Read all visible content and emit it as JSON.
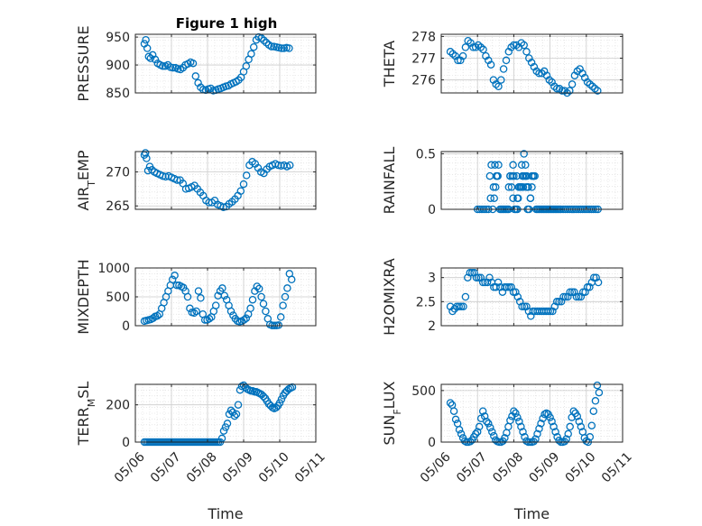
{
  "figure": {
    "title": "Figure 1 high"
  },
  "style": {
    "marker_color": "#0072BD",
    "axis_color": "#262626",
    "grid_color": "#d9d9d9"
  },
  "xaxis": {
    "label": "Time",
    "ticklabels": [
      "05/06",
      "05/07",
      "05/08",
      "05/09",
      "05/10",
      "05/11"
    ],
    "range": [
      0,
      5
    ]
  },
  "chart_data": [
    {
      "type": "scatter",
      "title": "Figure 1 high",
      "xlabel": "",
      "ylabel": "PRESSURE",
      "ylim": [
        850,
        955
      ],
      "yticks": [
        850,
        900,
        950
      ],
      "yticklabels": [
        "850",
        "900",
        "950"
      ],
      "x": [
        0.25,
        0.29,
        0.33,
        0.37,
        0.42,
        0.48,
        0.55,
        0.62,
        0.69,
        0.76,
        0.83,
        0.9,
        0.97,
        1.04,
        1.11,
        1.18,
        1.25,
        1.32,
        1.39,
        1.46,
        1.53,
        1.6,
        1.67,
        1.74,
        1.81,
        1.88,
        1.95,
        2.02,
        2.09,
        2.16,
        2.23,
        2.3,
        2.37,
        2.44,
        2.51,
        2.58,
        2.65,
        2.72,
        2.79,
        2.86,
        2.93,
        3.0,
        3.07,
        3.14,
        3.21,
        3.28,
        3.35,
        3.42,
        3.49,
        3.56,
        3.63,
        3.7,
        3.77,
        3.84,
        3.91,
        3.98,
        4.05,
        4.12,
        4.19,
        4.26
      ],
      "y": [
        938,
        945,
        930,
        915,
        912,
        918,
        910,
        903,
        900,
        898,
        898,
        900,
        896,
        895,
        895,
        893,
        892,
        895,
        900,
        902,
        905,
        903,
        880,
        868,
        860,
        856,
        855,
        857,
        858,
        854,
        855,
        857,
        858,
        860,
        862,
        863,
        866,
        868,
        870,
        873,
        878,
        888,
        898,
        910,
        920,
        932,
        945,
        950,
        948,
        944,
        940,
        936,
        933,
        933,
        932,
        931,
        930,
        930,
        931,
        930
      ]
    },
    {
      "type": "scatter",
      "xlabel": "",
      "ylabel": "THETA",
      "ylim": [
        275.4,
        278.1
      ],
      "yticks": [
        276,
        277,
        278
      ],
      "yticklabels": [
        "276",
        "277",
        "278"
      ],
      "x": [
        0.25,
        0.32,
        0.39,
        0.46,
        0.53,
        0.6,
        0.67,
        0.74,
        0.81,
        0.88,
        0.95,
        1.02,
        1.09,
        1.16,
        1.23,
        1.3,
        1.37,
        1.44,
        1.51,
        1.58,
        1.65,
        1.72,
        1.79,
        1.86,
        1.93,
        2.0,
        2.07,
        2.14,
        2.21,
        2.28,
        2.35,
        2.42,
        2.49,
        2.56,
        2.63,
        2.7,
        2.77,
        2.84,
        2.91,
        2.98,
        3.05,
        3.12,
        3.19,
        3.26,
        3.33,
        3.4,
        3.47,
        3.54,
        3.61,
        3.68,
        3.75,
        3.82,
        3.89,
        3.96,
        4.03,
        4.1,
        4.17,
        4.24,
        4.31
      ],
      "y": [
        277.3,
        277.2,
        277.1,
        276.9,
        276.9,
        277.1,
        277.5,
        277.8,
        277.7,
        277.5,
        277.5,
        277.6,
        277.5,
        277.4,
        277.1,
        276.9,
        276.7,
        276.0,
        275.8,
        275.7,
        276.0,
        276.5,
        276.9,
        277.3,
        277.5,
        277.6,
        277.6,
        277.5,
        277.7,
        277.6,
        277.3,
        277.0,
        276.8,
        276.6,
        276.4,
        276.3,
        276.3,
        276.4,
        276.2,
        276.0,
        275.9,
        275.7,
        275.6,
        275.6,
        275.5,
        275.5,
        275.4,
        275.5,
        275.8,
        276.2,
        276.4,
        276.5,
        276.3,
        276.1,
        275.9,
        275.8,
        275.7,
        275.6,
        275.5
      ]
    },
    {
      "type": "scatter",
      "xlabel": "",
      "ylabel": "AIR_TEMP",
      "ylim": [
        264.5,
        273
      ],
      "yticks": [
        265,
        270
      ],
      "yticklabels": [
        "265",
        "270"
      ],
      "x": [
        0.25,
        0.28,
        0.31,
        0.35,
        0.4,
        0.46,
        0.53,
        0.6,
        0.68,
        0.76,
        0.84,
        0.92,
        1.0,
        1.08,
        1.16,
        1.24,
        1.32,
        1.4,
        1.48,
        1.56,
        1.64,
        1.72,
        1.8,
        1.88,
        1.96,
        2.04,
        2.12,
        2.2,
        2.28,
        2.36,
        2.44,
        2.52,
        2.6,
        2.68,
        2.76,
        2.84,
        2.92,
        3.0,
        3.08,
        3.16,
        3.24,
        3.32,
        3.4,
        3.48,
        3.56,
        3.64,
        3.72,
        3.8,
        3.88,
        3.96,
        4.04,
        4.12,
        4.2,
        4.28
      ],
      "y": [
        272.5,
        272.8,
        272.0,
        270.2,
        270.8,
        270.3,
        270.0,
        269.8,
        269.6,
        269.4,
        269.3,
        269.4,
        269.2,
        269.0,
        268.8,
        268.8,
        268.3,
        267.5,
        267.6,
        267.8,
        268.0,
        267.5,
        267.0,
        266.5,
        265.8,
        265.5,
        265.5,
        265.8,
        265.2,
        265.0,
        264.8,
        264.9,
        265.3,
        265.6,
        266.0,
        266.5,
        267.2,
        268.2,
        269.5,
        271.0,
        271.5,
        271.2,
        270.6,
        270.0,
        269.8,
        270.4,
        270.8,
        271.0,
        271.2,
        271.0,
        270.9,
        271.0,
        270.8,
        271.0
      ]
    },
    {
      "type": "scatter",
      "xlabel": "",
      "ylabel": "RAINFALL",
      "ylim": [
        0,
        0.52
      ],
      "yticks": [
        0,
        0.5
      ],
      "yticklabels": [
        "0",
        "0.5"
      ],
      "x": [
        1.0,
        1.06,
        1.12,
        1.18,
        1.24,
        1.3,
        1.34,
        1.38,
        1.42,
        1.46,
        1.5,
        1.54,
        1.58,
        1.62,
        1.66,
        1.7,
        1.74,
        1.78,
        1.82,
        1.86,
        1.9,
        1.94,
        1.98,
        2.02,
        2.06,
        2.1,
        2.14,
        2.18,
        2.22,
        2.26,
        2.3,
        2.34,
        2.38,
        2.42,
        2.46,
        2.5,
        2.54,
        2.58,
        2.62,
        2.66,
        2.7,
        2.74,
        2.78,
        2.82,
        2.86,
        2.9,
        2.94,
        2.98,
        3.02,
        3.06,
        3.1,
        3.14,
        3.18,
        3.22,
        3.26,
        3.3,
        3.36,
        3.42,
        3.48,
        3.54,
        3.6,
        3.66,
        3.72,
        3.78,
        3.84,
        3.9,
        3.96,
        4.02,
        4.08,
        4.14,
        4.2,
        4.26,
        4.32,
        1.36,
        1.44,
        1.48,
        1.52,
        1.9,
        1.96,
        2.08,
        2.14,
        2.2,
        2.24,
        2.28,
        2.32,
        2.36,
        2.4,
        2.46,
        2.5,
        2.54,
        1.56,
        1.86,
        2.0,
        2.12,
        2.26,
        2.38,
        1.98,
        2.1,
        2.22,
        2.34
      ],
      "y": [
        0,
        0,
        0,
        0,
        0,
        0,
        0.3,
        0.4,
        0,
        0.1,
        0.2,
        0.3,
        0.4,
        0,
        0,
        0,
        0,
        0,
        0,
        0,
        0.3,
        0.2,
        0.1,
        0,
        0,
        0,
        0.2,
        0.2,
        0.4,
        0.3,
        0.3,
        0.2,
        0,
        0,
        0.1,
        0.3,
        0.3,
        0.3,
        0,
        0,
        0,
        0,
        0,
        0,
        0,
        0,
        0,
        0,
        0,
        0,
        0,
        0,
        0,
        0,
        0,
        0,
        0,
        0,
        0,
        0,
        0,
        0,
        0,
        0,
        0,
        0,
        0,
        0,
        0,
        0,
        0,
        0,
        0,
        0.1,
        0.2,
        0.4,
        0.3,
        0.3,
        0.3,
        0.3,
        0.2,
        0.2,
        0.3,
        0.5,
        0.4,
        0.3,
        0.2,
        0.1,
        0.2,
        0.3,
        0.3,
        0.2,
        0.3,
        0.1,
        0.2,
        0.2,
        0.4,
        0.1,
        0.2,
        0.3
      ]
    },
    {
      "type": "scatter",
      "xlabel": "",
      "ylabel": "MIXDEPTH",
      "ylim": [
        0,
        1000
      ],
      "yticks": [
        0,
        500,
        1000
      ],
      "yticklabels": [
        "0",
        "500",
        "1000"
      ],
      "x": [
        0.25,
        0.31,
        0.37,
        0.43,
        0.49,
        0.55,
        0.61,
        0.67,
        0.73,
        0.79,
        0.85,
        0.91,
        0.97,
        1.03,
        1.09,
        1.15,
        1.21,
        1.27,
        1.33,
        1.39,
        1.45,
        1.51,
        1.57,
        1.63,
        1.69,
        1.75,
        1.81,
        1.87,
        1.93,
        1.99,
        2.05,
        2.11,
        2.17,
        2.23,
        2.29,
        2.35,
        2.41,
        2.47,
        2.53,
        2.59,
        2.65,
        2.71,
        2.77,
        2.83,
        2.89,
        2.95,
        3.01,
        3.07,
        3.13,
        3.19,
        3.25,
        3.31,
        3.37,
        3.43,
        3.49,
        3.55,
        3.61,
        3.67,
        3.73,
        3.79,
        3.85,
        3.91,
        3.97,
        4.03,
        4.09,
        4.15,
        4.21,
        4.27,
        4.33
      ],
      "y": [
        80,
        90,
        100,
        110,
        130,
        160,
        170,
        200,
        300,
        400,
        500,
        600,
        700,
        800,
        870,
        700,
        700,
        680,
        660,
        600,
        500,
        300,
        230,
        220,
        250,
        600,
        480,
        200,
        100,
        100,
        120,
        150,
        250,
        350,
        520,
        600,
        650,
        520,
        450,
        350,
        250,
        180,
        120,
        80,
        70,
        80,
        100,
        130,
        200,
        300,
        450,
        600,
        680,
        640,
        500,
        380,
        250,
        120,
        20,
        5,
        5,
        5,
        10,
        150,
        350,
        500,
        650,
        900,
        800
      ]
    },
    {
      "type": "scatter",
      "xlabel": "",
      "ylabel": "H2OMIXRA",
      "ylim": [
        2,
        3.2
      ],
      "yticks": [
        2,
        2.5,
        3
      ],
      "yticklabels": [
        "2",
        "2.5",
        "3"
      ],
      "x": [
        0.25,
        0.31,
        0.37,
        0.43,
        0.49,
        0.55,
        0.61,
        0.67,
        0.73,
        0.79,
        0.85,
        0.91,
        0.97,
        1.03,
        1.09,
        1.15,
        1.21,
        1.27,
        1.33,
        1.39,
        1.45,
        1.51,
        1.57,
        1.63,
        1.69,
        1.75,
        1.81,
        1.87,
        1.93,
        1.99,
        2.05,
        2.11,
        2.17,
        2.23,
        2.29,
        2.35,
        2.41,
        2.47,
        2.53,
        2.59,
        2.65,
        2.71,
        2.77,
        2.83,
        2.89,
        2.95,
        3.01,
        3.07,
        3.13,
        3.19,
        3.25,
        3.31,
        3.37,
        3.43,
        3.49,
        3.55,
        3.61,
        3.67,
        3.73,
        3.79,
        3.85,
        3.91,
        3.97,
        4.03,
        4.09,
        4.15,
        4.21,
        4.27,
        4.33
      ],
      "y": [
        2.4,
        2.3,
        2.35,
        2.4,
        2.4,
        2.4,
        2.4,
        2.6,
        3.0,
        3.1,
        3.1,
        3.1,
        3.0,
        3.0,
        3.0,
        2.9,
        2.9,
        2.9,
        3.0,
        2.9,
        2.8,
        2.8,
        2.9,
        2.8,
        2.7,
        2.8,
        2.8,
        2.8,
        2.8,
        2.7,
        2.7,
        2.6,
        2.5,
        2.4,
        2.4,
        2.4,
        2.3,
        2.2,
        2.3,
        2.3,
        2.3,
        2.3,
        2.3,
        2.3,
        2.3,
        2.3,
        2.3,
        2.3,
        2.4,
        2.5,
        2.5,
        2.5,
        2.6,
        2.6,
        2.6,
        2.7,
        2.7,
        2.7,
        2.6,
        2.6,
        2.6,
        2.7,
        2.7,
        2.8,
        2.8,
        2.9,
        3.0,
        3.0,
        2.9
      ]
    },
    {
      "type": "scatter",
      "xlabel": "Time",
      "ylabel": "TERR_MSL",
      "ylim": [
        0,
        310
      ],
      "yticks": [
        0,
        200
      ],
      "yticklabels": [
        "0",
        "200"
      ],
      "x": [
        0.25,
        0.3,
        0.35,
        0.4,
        0.45,
        0.5,
        0.55,
        0.6,
        0.65,
        0.7,
        0.75,
        0.8,
        0.85,
        0.9,
        0.95,
        1.0,
        1.05,
        1.1,
        1.15,
        1.2,
        1.25,
        1.3,
        1.35,
        1.4,
        1.45,
        1.5,
        1.55,
        1.6,
        1.65,
        1.7,
        1.75,
        1.8,
        1.85,
        1.9,
        1.95,
        2.0,
        2.05,
        2.1,
        2.15,
        2.2,
        2.25,
        2.3,
        2.35,
        2.4,
        2.45,
        2.5,
        2.55,
        2.6,
        2.65,
        2.7,
        2.75,
        2.8,
        2.85,
        2.9,
        2.95,
        3.0,
        3.05,
        3.1,
        3.15,
        3.2,
        3.25,
        3.3,
        3.35,
        3.4,
        3.45,
        3.5,
        3.55,
        3.6,
        3.65,
        3.7,
        3.75,
        3.8,
        3.85,
        3.9,
        3.95,
        4.0,
        4.05,
        4.1,
        4.15,
        4.2,
        4.25,
        4.3,
        4.35
      ],
      "y": [
        0,
        0,
        0,
        0,
        0,
        0,
        0,
        0,
        0,
        0,
        0,
        0,
        0,
        0,
        0,
        0,
        0,
        0,
        0,
        0,
        0,
        0,
        0,
        0,
        0,
        0,
        0,
        0,
        0,
        0,
        0,
        0,
        0,
        0,
        0,
        0,
        0,
        0,
        0,
        0,
        0,
        0,
        0,
        20,
        60,
        80,
        100,
        150,
        170,
        160,
        140,
        150,
        200,
        280,
        300,
        305,
        295,
        285,
        280,
        275,
        275,
        270,
        270,
        265,
        260,
        255,
        245,
        235,
        220,
        205,
        195,
        185,
        180,
        185,
        195,
        210,
        230,
        250,
        265,
        275,
        285,
        290,
        295
      ]
    },
    {
      "type": "scatter",
      "xlabel": "Time",
      "ylabel": "SUN_FLUX",
      "ylim": [
        0,
        560
      ],
      "yticks": [
        0,
        500
      ],
      "yticklabels": [
        "0",
        "500"
      ],
      "x": [
        0.25,
        0.3,
        0.35,
        0.4,
        0.45,
        0.5,
        0.55,
        0.6,
        0.65,
        0.7,
        0.75,
        0.8,
        0.85,
        0.9,
        0.95,
        1.0,
        1.05,
        1.1,
        1.15,
        1.2,
        1.25,
        1.3,
        1.35,
        1.4,
        1.45,
        1.5,
        1.55,
        1.6,
        1.65,
        1.7,
        1.75,
        1.8,
        1.85,
        1.9,
        1.95,
        2.0,
        2.05,
        2.1,
        2.15,
        2.2,
        2.25,
        2.3,
        2.35,
        2.4,
        2.45,
        2.5,
        2.55,
        2.6,
        2.65,
        2.7,
        2.75,
        2.8,
        2.85,
        2.9,
        2.95,
        3.0,
        3.05,
        3.1,
        3.15,
        3.2,
        3.25,
        3.3,
        3.35,
        3.4,
        3.45,
        3.5,
        3.55,
        3.6,
        3.65,
        3.7,
        3.75,
        3.8,
        3.85,
        3.9,
        3.95,
        4.0,
        4.05,
        4.1,
        4.15,
        4.2,
        4.25,
        4.3,
        4.35
      ],
      "y": [
        380,
        360,
        300,
        220,
        180,
        120,
        80,
        40,
        10,
        0,
        0,
        5,
        20,
        50,
        80,
        100,
        150,
        230,
        300,
        250,
        200,
        180,
        140,
        100,
        60,
        20,
        5,
        0,
        0,
        10,
        40,
        90,
        150,
        210,
        250,
        300,
        280,
        240,
        200,
        150,
        100,
        50,
        10,
        0,
        0,
        0,
        5,
        30,
        80,
        130,
        180,
        230,
        270,
        280,
        270,
        240,
        200,
        150,
        100,
        50,
        15,
        0,
        0,
        5,
        30,
        80,
        150,
        240,
        300,
        280,
        250,
        200,
        150,
        100,
        40,
        10,
        0,
        50,
        160,
        300,
        400,
        550,
        480
      ]
    }
  ]
}
